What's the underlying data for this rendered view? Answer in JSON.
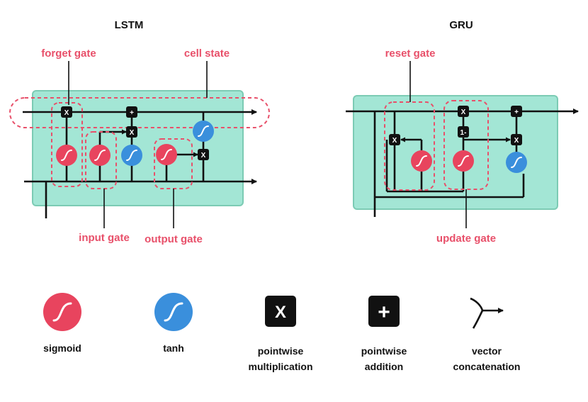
{
  "lstm": {
    "title": "LSTM",
    "labels": {
      "forget_gate": "forget gate",
      "cell_state": "cell state",
      "input_gate": "input gate",
      "output_gate": "output gate"
    }
  },
  "gru": {
    "title": "GRU",
    "labels": {
      "reset_gate": "reset gate",
      "update_gate": "update gate"
    },
    "one_minus": "1-"
  },
  "ops": {
    "multiply_symbol": "X",
    "add_symbol": "+"
  },
  "legend": [
    {
      "icon": "sigmoid-icon",
      "line1": "sigmoid",
      "line2": ""
    },
    {
      "icon": "tanh-icon",
      "line1": "tanh",
      "line2": ""
    },
    {
      "icon": "pointwise-multiplication-icon",
      "line1": "pointwise",
      "line2": "multiplication"
    },
    {
      "icon": "pointwise-addition-icon",
      "line1": "pointwise",
      "line2": "addition"
    },
    {
      "icon": "vector-concatenation-icon",
      "line1": "vector",
      "line2": "concatenation"
    }
  ],
  "colors": {
    "sigmoid": "#e8445e",
    "tanh": "#3a8fdc",
    "cell_box": "#a3e6d5",
    "annotation": "#e8506a"
  }
}
